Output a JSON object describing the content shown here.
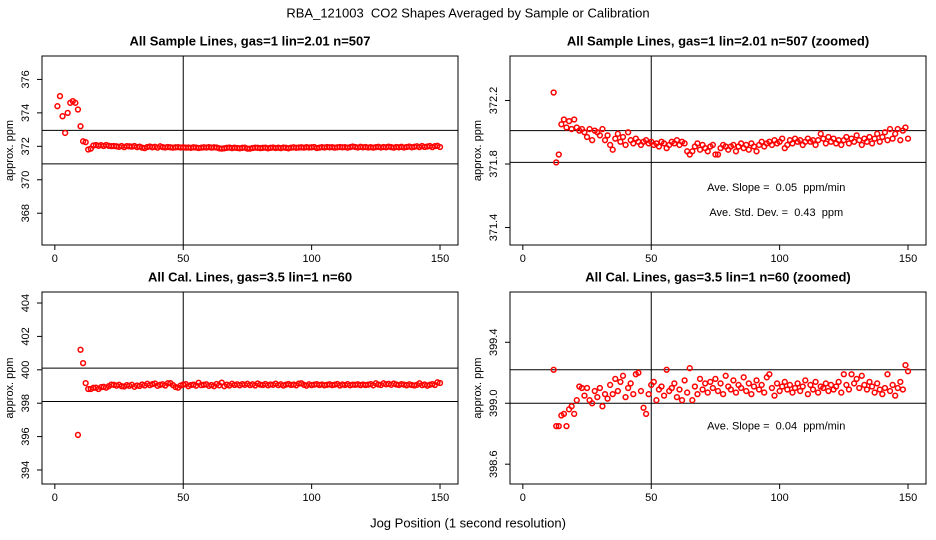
{
  "figure": {
    "title": "RBA_121003  CO2 Shapes Averaged by Sample or Calibration",
    "xlabel": "Jog Position (1 second resolution)"
  },
  "chart_data": [
    {
      "type": "scatter",
      "title": "All Sample Lines, gas=1 lin=2.01 n=507",
      "ylabel": "approx. ppm",
      "color": "#ff0000",
      "xlim": [
        -5,
        157
      ],
      "ylim": [
        366.1,
        377.4
      ],
      "xticks": [
        0,
        50,
        100,
        150
      ],
      "yticks": [
        368,
        370,
        372,
        374,
        376
      ],
      "hlines": [
        372.95,
        370.95
      ],
      "vlines": [
        50
      ],
      "x": [
        1,
        2,
        3,
        4,
        5,
        6,
        7,
        8,
        9,
        10,
        11,
        12,
        13,
        14,
        15,
        16,
        17,
        18,
        19,
        20,
        21,
        22,
        23,
        24,
        25,
        26,
        27,
        28,
        29,
        30,
        31,
        32,
        33,
        34,
        35,
        36,
        37,
        38,
        39,
        40,
        41,
        42,
        43,
        44,
        45,
        46,
        47,
        48,
        49,
        50,
        51,
        52,
        53,
        54,
        55,
        56,
        57,
        58,
        59,
        60,
        61,
        62,
        63,
        64,
        65,
        66,
        67,
        68,
        69,
        70,
        71,
        72,
        73,
        74,
        75,
        76,
        77,
        78,
        79,
        80,
        81,
        82,
        83,
        84,
        85,
        86,
        87,
        88,
        89,
        90,
        91,
        92,
        93,
        94,
        95,
        96,
        97,
        98,
        99,
        100,
        101,
        102,
        103,
        104,
        105,
        106,
        107,
        108,
        109,
        110,
        111,
        112,
        113,
        114,
        115,
        116,
        117,
        118,
        119,
        120,
        121,
        122,
        123,
        124,
        125,
        126,
        127,
        128,
        129,
        130,
        131,
        132,
        133,
        134,
        135,
        136,
        137,
        138,
        139,
        140,
        141,
        142,
        143,
        144,
        145,
        146,
        147,
        148,
        149,
        150
      ],
      "values": [
        374.4,
        375.0,
        373.8,
        372.8,
        374.0,
        374.6,
        374.7,
        374.6,
        374.2,
        373.2,
        372.3,
        372.25,
        371.81,
        371.86,
        372.05,
        372.08,
        372.03,
        372.07,
        372.02,
        372.08,
        372.03,
        372.01,
        372.02,
        372.0,
        371.97,
        372.02,
        371.95,
        372.01,
        372.0,
        371.98,
        372.02,
        371.95,
        371.98,
        371.92,
        371.89,
        371.96,
        371.99,
        371.94,
        371.97,
        371.92,
        372.0,
        371.95,
        371.93,
        371.96,
        371.94,
        371.92,
        371.94,
        371.95,
        371.93,
        371.94,
        371.92,
        371.93,
        371.91,
        371.94,
        371.93,
        371.9,
        371.92,
        371.94,
        371.93,
        371.95,
        371.92,
        371.94,
        371.93,
        371.88,
        371.86,
        371.88,
        371.91,
        371.93,
        371.89,
        371.92,
        371.9,
        371.88,
        371.91,
        371.92,
        371.86,
        371.86,
        371.9,
        371.92,
        371.91,
        371.89,
        371.91,
        371.92,
        371.88,
        371.91,
        371.93,
        371.9,
        371.92,
        371.89,
        371.93,
        371.91,
        371.88,
        371.92,
        371.94,
        371.91,
        371.93,
        371.94,
        371.92,
        371.95,
        371.93,
        371.94,
        371.96,
        371.9,
        371.92,
        371.95,
        371.93,
        371.96,
        371.94,
        371.95,
        371.92,
        371.94,
        371.96,
        371.94,
        371.95,
        371.92,
        371.95,
        371.99,
        371.96,
        371.93,
        371.97,
        371.94,
        371.96,
        371.93,
        371.95,
        371.92,
        371.95,
        371.97,
        371.93,
        371.96,
        371.94,
        371.98,
        371.95,
        371.92,
        371.96,
        371.94,
        371.97,
        371.93,
        371.96,
        371.99,
        371.94,
        371.97,
        372.0,
        371.95,
        372.02,
        371.96,
        371.99,
        372.02,
        371.95,
        372.01,
        372.03,
        371.96
      ]
    },
    {
      "type": "scatter",
      "title": "All Sample Lines, gas=1 lin=2.01 n=507 (zoomed)",
      "ylabel": "approx. ppm",
      "color": "#ff0000",
      "xlim": [
        -5,
        157
      ],
      "ylim": [
        371.29,
        372.48
      ],
      "xticks": [
        0,
        50,
        100,
        150
      ],
      "yticks": [
        371.4,
        371.8,
        372.2
      ],
      "hlines": [
        372.01,
        371.81
      ],
      "vlines": [
        50
      ],
      "annotations": [
        "Ave. Slope =  0.05  ppm/min",
        "Ave. Std. Dev. =  0.43  ppm"
      ],
      "x": [
        12,
        13,
        14,
        15,
        16,
        17,
        18,
        19,
        20,
        21,
        22,
        23,
        24,
        25,
        26,
        27,
        28,
        29,
        30,
        31,
        32,
        33,
        34,
        35,
        36,
        37,
        38,
        39,
        40,
        41,
        42,
        43,
        44,
        45,
        46,
        47,
        48,
        49,
        50,
        51,
        52,
        53,
        54,
        55,
        56,
        57,
        58,
        59,
        60,
        61,
        62,
        63,
        64,
        65,
        66,
        67,
        68,
        69,
        70,
        71,
        72,
        73,
        74,
        75,
        76,
        77,
        78,
        79,
        80,
        81,
        82,
        83,
        84,
        85,
        86,
        87,
        88,
        89,
        90,
        91,
        92,
        93,
        94,
        95,
        96,
        97,
        98,
        99,
        100,
        101,
        102,
        103,
        104,
        105,
        106,
        107,
        108,
        109,
        110,
        111,
        112,
        113,
        114,
        115,
        116,
        117,
        118,
        119,
        120,
        121,
        122,
        123,
        124,
        125,
        126,
        127,
        128,
        129,
        130,
        131,
        132,
        133,
        134,
        135,
        136,
        137,
        138,
        139,
        140,
        141,
        142,
        143,
        144,
        145,
        146,
        147,
        148,
        149,
        150
      ],
      "values": [
        372.25,
        371.81,
        371.86,
        372.05,
        372.08,
        372.03,
        372.07,
        372.02,
        372.08,
        372.03,
        372.01,
        372.02,
        372.0,
        371.97,
        372.02,
        371.95,
        372.01,
        372.0,
        371.98,
        372.02,
        371.95,
        371.98,
        371.92,
        371.89,
        371.96,
        371.99,
        371.94,
        371.97,
        371.92,
        372.0,
        371.95,
        371.93,
        371.96,
        371.94,
        371.92,
        371.94,
        371.95,
        371.93,
        371.94,
        371.92,
        371.93,
        371.91,
        371.94,
        371.93,
        371.9,
        371.92,
        371.94,
        371.93,
        371.95,
        371.92,
        371.94,
        371.93,
        371.88,
        371.86,
        371.88,
        371.91,
        371.93,
        371.89,
        371.92,
        371.9,
        371.88,
        371.91,
        371.92,
        371.86,
        371.86,
        371.9,
        371.92,
        371.91,
        371.89,
        371.91,
        371.92,
        371.88,
        371.91,
        371.93,
        371.9,
        371.92,
        371.89,
        371.93,
        371.91,
        371.88,
        371.92,
        371.94,
        371.91,
        371.93,
        371.94,
        371.92,
        371.95,
        371.93,
        371.94,
        371.96,
        371.9,
        371.92,
        371.95,
        371.93,
        371.96,
        371.94,
        371.95,
        371.92,
        371.94,
        371.96,
        371.94,
        371.95,
        371.92,
        371.95,
        371.99,
        371.96,
        371.93,
        371.97,
        371.94,
        371.96,
        371.93,
        371.95,
        371.92,
        371.95,
        371.97,
        371.93,
        371.96,
        371.94,
        371.98,
        371.95,
        371.92,
        371.96,
        371.94,
        371.97,
        371.93,
        371.96,
        371.99,
        371.94,
        371.97,
        372.0,
        371.95,
        372.02,
        371.96,
        371.99,
        372.02,
        371.95,
        372.01,
        372.03,
        371.96
      ]
    },
    {
      "type": "scatter",
      "title": "All Cal. Lines, gas=3.5 lin=1 n=60",
      "ylabel": "approx. ppm",
      "color": "#ff0000",
      "xlim": [
        -5,
        157
      ],
      "ylim": [
        393.16,
        404.66
      ],
      "xticks": [
        0,
        50,
        100,
        150
      ],
      "yticks": [
        394,
        396,
        398,
        400,
        402,
        404
      ],
      "hlines": [
        400.1,
        398.1
      ],
      "vlines": [
        50
      ],
      "x": [
        9,
        10,
        11,
        12,
        13,
        14,
        15,
        16,
        17,
        18,
        19,
        20,
        21,
        22,
        23,
        24,
        25,
        26,
        27,
        28,
        29,
        30,
        31,
        32,
        33,
        34,
        35,
        36,
        37,
        38,
        39,
        40,
        41,
        42,
        43,
        44,
        45,
        46,
        47,
        48,
        49,
        50,
        51,
        52,
        53,
        54,
        55,
        56,
        57,
        58,
        59,
        60,
        61,
        62,
        63,
        64,
        65,
        66,
        67,
        68,
        69,
        70,
        71,
        72,
        73,
        74,
        75,
        76,
        77,
        78,
        79,
        80,
        81,
        82,
        83,
        84,
        85,
        86,
        87,
        88,
        89,
        90,
        91,
        92,
        93,
        94,
        95,
        96,
        97,
        98,
        99,
        100,
        101,
        102,
        103,
        104,
        105,
        106,
        107,
        108,
        109,
        110,
        111,
        112,
        113,
        114,
        115,
        116,
        117,
        118,
        119,
        120,
        121,
        122,
        123,
        124,
        125,
        126,
        127,
        128,
        129,
        130,
        131,
        132,
        133,
        134,
        135,
        136,
        137,
        138,
        139,
        140,
        141,
        142,
        143,
        144,
        145,
        146,
        147,
        148,
        149,
        150
      ],
      "values": [
        396.1,
        401.2,
        400.4,
        399.2,
        398.85,
        398.85,
        398.92,
        398.93,
        398.85,
        398.96,
        398.98,
        398.93,
        399.02,
        399.11,
        399.1,
        399.05,
        399.1,
        399.02,
        399.0,
        399.08,
        399.04,
        399.1,
        398.98,
        399.06,
        399.03,
        399.12,
        399.06,
        399.16,
        399.08,
        399.14,
        399.18,
        399.04,
        399.1,
        399.13,
        399.06,
        399.19,
        399.2,
        399.08,
        398.97,
        398.93,
        399.06,
        399.12,
        399.14,
        399.02,
        399.09,
        399.11,
        399.05,
        399.22,
        399.08,
        399.1,
        399.13,
        399.04,
        399.09,
        399.02,
        399.15,
        399.07,
        399.23,
        399.02,
        399.11,
        399.06,
        399.16,
        399.09,
        399.13,
        399.07,
        399.14,
        399.1,
        399.16,
        399.08,
        399.13,
        399.06,
        399.18,
        399.11,
        399.09,
        399.15,
        399.07,
        399.12,
        399.1,
        399.17,
        399.08,
        399.13,
        399.06,
        399.11,
        399.15,
        399.09,
        399.12,
        399.07,
        399.17,
        399.19,
        399.1,
        399.05,
        399.13,
        399.08,
        399.11,
        399.14,
        399.09,
        399.12,
        399.07,
        399.1,
        399.13,
        399.08,
        399.11,
        399.15,
        399.06,
        399.12,
        399.09,
        399.14,
        399.07,
        399.11,
        399.1,
        399.13,
        399.08,
        399.12,
        399.09,
        399.11,
        399.14,
        399.07,
        399.19,
        399.12,
        399.09,
        399.19,
        399.13,
        399.16,
        399.1,
        399.18,
        399.12,
        399.09,
        399.14,
        399.11,
        399.07,
        399.13,
        399.09,
        399.06,
        399.1,
        399.19,
        399.08,
        399.12,
        399.05,
        399.1,
        399.14,
        399.09,
        399.25,
        399.21
      ]
    },
    {
      "type": "scatter",
      "title": "All Cal. Lines, gas=3.5 lin=1 n=60 (zoomed)",
      "ylabel": "approx. ppm",
      "color": "#ff0000",
      "xlim": [
        -5,
        157
      ],
      "ylim": [
        398.47,
        399.73
      ],
      "xticks": [
        0,
        50,
        100,
        150
      ],
      "yticks": [
        398.6,
        {
          "value": 399,
          "label": "399.0"
        },
        399.4
      ],
      "hlines": [
        399.22,
        399.0
      ],
      "vlines": [
        50
      ],
      "annotations": [
        "Ave. Slope =  0.04  ppm/min"
      ],
      "x": [
        12,
        13,
        14,
        15,
        16,
        17,
        18,
        19,
        20,
        21,
        22,
        23,
        24,
        25,
        26,
        27,
        28,
        29,
        30,
        31,
        32,
        33,
        34,
        35,
        36,
        37,
        38,
        39,
        40,
        41,
        42,
        43,
        44,
        45,
        46,
        47,
        48,
        49,
        50,
        51,
        52,
        53,
        54,
        55,
        56,
        57,
        58,
        59,
        60,
        61,
        62,
        63,
        64,
        65,
        66,
        67,
        68,
        69,
        70,
        71,
        72,
        73,
        74,
        75,
        76,
        77,
        78,
        79,
        80,
        81,
        82,
        83,
        84,
        85,
        86,
        87,
        88,
        89,
        90,
        91,
        92,
        93,
        94,
        95,
        96,
        97,
        98,
        99,
        100,
        101,
        102,
        103,
        104,
        105,
        106,
        107,
        108,
        109,
        110,
        111,
        112,
        113,
        114,
        115,
        116,
        117,
        118,
        119,
        120,
        121,
        122,
        123,
        124,
        125,
        126,
        127,
        128,
        129,
        130,
        131,
        132,
        133,
        134,
        135,
        136,
        137,
        138,
        139,
        140,
        141,
        142,
        143,
        144,
        145,
        146,
        147,
        148,
        149,
        150
      ],
      "values": [
        399.22,
        398.85,
        398.85,
        398.92,
        398.93,
        398.85,
        398.96,
        398.98,
        398.93,
        399.02,
        399.11,
        399.1,
        399.05,
        399.1,
        399.02,
        399.0,
        399.08,
        399.04,
        399.1,
        398.98,
        399.06,
        399.03,
        399.12,
        399.06,
        399.16,
        399.08,
        399.14,
        399.18,
        399.04,
        399.1,
        399.13,
        399.06,
        399.19,
        399.2,
        399.08,
        398.97,
        398.93,
        399.06,
        399.12,
        399.14,
        399.02,
        399.09,
        399.11,
        399.05,
        399.22,
        399.08,
        399.1,
        399.13,
        399.04,
        399.09,
        399.02,
        399.15,
        399.07,
        399.23,
        399.02,
        399.11,
        399.06,
        399.16,
        399.09,
        399.13,
        399.07,
        399.14,
        399.1,
        399.16,
        399.08,
        399.13,
        399.06,
        399.18,
        399.11,
        399.09,
        399.15,
        399.07,
        399.12,
        399.1,
        399.17,
        399.08,
        399.13,
        399.06,
        399.11,
        399.15,
        399.09,
        399.12,
        399.07,
        399.17,
        399.19,
        399.1,
        399.05,
        399.13,
        399.08,
        399.11,
        399.14,
        399.09,
        399.12,
        399.07,
        399.1,
        399.13,
        399.08,
        399.11,
        399.15,
        399.06,
        399.12,
        399.09,
        399.14,
        399.07,
        399.11,
        399.1,
        399.13,
        399.08,
        399.12,
        399.09,
        399.11,
        399.14,
        399.07,
        399.19,
        399.12,
        399.09,
        399.19,
        399.13,
        399.16,
        399.1,
        399.18,
        399.12,
        399.09,
        399.14,
        399.11,
        399.07,
        399.13,
        399.09,
        399.06,
        399.1,
        399.19,
        399.08,
        399.12,
        399.05,
        399.1,
        399.14,
        399.09,
        399.25,
        399.21
      ]
    }
  ]
}
